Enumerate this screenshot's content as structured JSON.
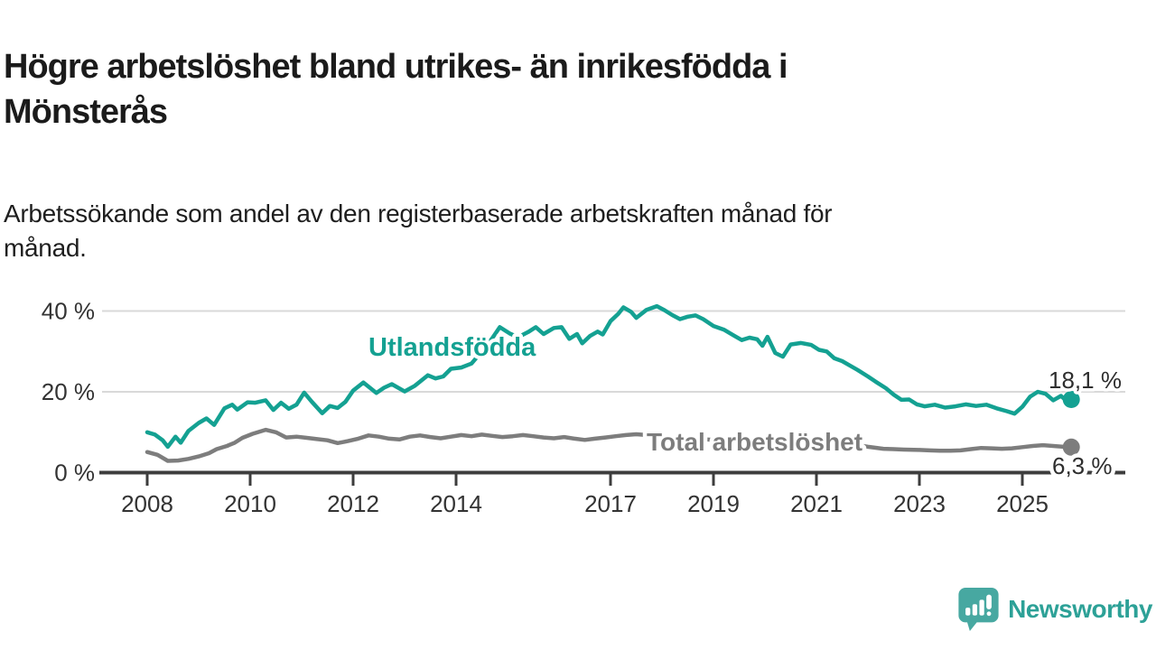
{
  "header": {
    "title_lines": [
      "Högre arbetslöshet bland utrikes- än inrikesfödda i",
      "Mönsterås"
    ],
    "subtitle_lines": [
      "Arbetssökande som andel av den registerbaserade arbetskraften månad för",
      "månad."
    ]
  },
  "chart_data": {
    "type": "line",
    "title": "Högre arbetslöshet bland utrikes- än inrikesfödda i Mönsterås",
    "subtitle": "Arbetssökande som andel av den registerbaserade arbetskraften månad för månad.",
    "unit": "%",
    "x_axis": {
      "label": "",
      "ticks": [
        2008,
        2010,
        2012,
        2014,
        2017,
        2019,
        2021,
        2023,
        2025
      ],
      "range": [
        2007.6,
        2027.0
      ]
    },
    "y_axis": {
      "label": "",
      "ticks": [
        0,
        20,
        40
      ],
      "tick_labels": [
        "0 %",
        "20 %",
        "40 %"
      ],
      "range": [
        0,
        45
      ],
      "gridlines": true
    },
    "legend_position": "inline-labels",
    "colors": {
      "utlandsfodda": "#14a192",
      "total": "#7d7d7d",
      "axis": "#3d3d3d",
      "gridline": "#d9d9d9",
      "value_label": "#2e2e2e"
    },
    "series": [
      {
        "name": "Utlandsfödda",
        "color": "#14a192",
        "end_label": "18,1 %",
        "end_value": 18.1,
        "points": [
          [
            2008.0,
            10.0
          ],
          [
            2008.15,
            9.4
          ],
          [
            2008.3,
            8.0
          ],
          [
            2008.4,
            6.4
          ],
          [
            2008.55,
            8.9
          ],
          [
            2008.65,
            7.4
          ],
          [
            2008.8,
            10.3
          ],
          [
            2009.0,
            12.3
          ],
          [
            2009.15,
            13.4
          ],
          [
            2009.3,
            11.8
          ],
          [
            2009.5,
            15.9
          ],
          [
            2009.65,
            16.8
          ],
          [
            2009.75,
            15.6
          ],
          [
            2009.95,
            17.4
          ],
          [
            2010.1,
            17.3
          ],
          [
            2010.3,
            17.9
          ],
          [
            2010.45,
            15.5
          ],
          [
            2010.6,
            17.3
          ],
          [
            2010.75,
            15.8
          ],
          [
            2010.9,
            16.8
          ],
          [
            2011.05,
            19.8
          ],
          [
            2011.2,
            17.5
          ],
          [
            2011.4,
            14.7
          ],
          [
            2011.55,
            16.5
          ],
          [
            2011.7,
            16.0
          ],
          [
            2011.85,
            17.5
          ],
          [
            2012.0,
            20.3
          ],
          [
            2012.2,
            22.3
          ],
          [
            2012.45,
            19.7
          ],
          [
            2012.6,
            21.0
          ],
          [
            2012.75,
            21.9
          ],
          [
            2013.0,
            20.1
          ],
          [
            2013.2,
            21.5
          ],
          [
            2013.45,
            24.1
          ],
          [
            2013.6,
            23.3
          ],
          [
            2013.75,
            23.8
          ],
          [
            2013.9,
            25.7
          ],
          [
            2014.1,
            26.0
          ],
          [
            2014.3,
            27.0
          ],
          [
            2014.5,
            30.0
          ],
          [
            2014.7,
            33.2
          ],
          [
            2014.85,
            36.0
          ],
          [
            2015.05,
            34.4
          ],
          [
            2015.2,
            33.5
          ],
          [
            2015.4,
            34.8
          ],
          [
            2015.55,
            36.0
          ],
          [
            2015.7,
            34.3
          ],
          [
            2015.9,
            35.8
          ],
          [
            2016.05,
            36.0
          ],
          [
            2016.2,
            33.1
          ],
          [
            2016.35,
            34.3
          ],
          [
            2016.45,
            32.0
          ],
          [
            2016.6,
            33.8
          ],
          [
            2016.75,
            34.9
          ],
          [
            2016.85,
            34.2
          ],
          [
            2017.0,
            37.5
          ],
          [
            2017.15,
            39.3
          ],
          [
            2017.25,
            40.9
          ],
          [
            2017.4,
            39.8
          ],
          [
            2017.5,
            38.3
          ],
          [
            2017.7,
            40.3
          ],
          [
            2017.9,
            41.2
          ],
          [
            2018.05,
            40.2
          ],
          [
            2018.2,
            39.0
          ],
          [
            2018.35,
            38.0
          ],
          [
            2018.5,
            38.6
          ],
          [
            2018.65,
            38.9
          ],
          [
            2018.8,
            38.0
          ],
          [
            2019.0,
            36.3
          ],
          [
            2019.2,
            35.4
          ],
          [
            2019.4,
            33.9
          ],
          [
            2019.55,
            32.8
          ],
          [
            2019.7,
            33.4
          ],
          [
            2019.85,
            33.0
          ],
          [
            2019.95,
            31.4
          ],
          [
            2020.05,
            33.6
          ],
          [
            2020.2,
            29.6
          ],
          [
            2020.35,
            28.7
          ],
          [
            2020.5,
            31.7
          ],
          [
            2020.7,
            32.1
          ],
          [
            2020.9,
            31.6
          ],
          [
            2021.05,
            30.4
          ],
          [
            2021.2,
            30.0
          ],
          [
            2021.35,
            28.3
          ],
          [
            2021.5,
            27.6
          ],
          [
            2021.65,
            26.5
          ],
          [
            2021.8,
            25.4
          ],
          [
            2022.0,
            23.8
          ],
          [
            2022.15,
            22.5
          ],
          [
            2022.35,
            20.9
          ],
          [
            2022.5,
            19.3
          ],
          [
            2022.65,
            18.0
          ],
          [
            2022.8,
            18.1
          ],
          [
            2022.95,
            16.9
          ],
          [
            2023.1,
            16.4
          ],
          [
            2023.3,
            16.8
          ],
          [
            2023.5,
            16.1
          ],
          [
            2023.7,
            16.4
          ],
          [
            2023.9,
            16.9
          ],
          [
            2024.1,
            16.5
          ],
          [
            2024.3,
            16.8
          ],
          [
            2024.5,
            15.9
          ],
          [
            2024.7,
            15.2
          ],
          [
            2024.85,
            14.6
          ],
          [
            2025.0,
            16.3
          ],
          [
            2025.15,
            18.8
          ],
          [
            2025.3,
            20.0
          ],
          [
            2025.45,
            19.5
          ],
          [
            2025.6,
            17.9
          ],
          [
            2025.75,
            19.0
          ],
          [
            2025.85,
            17.8
          ],
          [
            2025.95,
            18.1
          ]
        ]
      },
      {
        "name": "Total arbetslöshet",
        "color": "#7d7d7d",
        "end_label": "6,3 %",
        "end_value": 6.3,
        "points": [
          [
            2008.0,
            5.1
          ],
          [
            2008.2,
            4.4
          ],
          [
            2008.4,
            2.9
          ],
          [
            2008.6,
            3.0
          ],
          [
            2008.8,
            3.4
          ],
          [
            2009.0,
            4.0
          ],
          [
            2009.2,
            4.8
          ],
          [
            2009.35,
            5.8
          ],
          [
            2009.55,
            6.6
          ],
          [
            2009.7,
            7.4
          ],
          [
            2009.85,
            8.6
          ],
          [
            2010.05,
            9.6
          ],
          [
            2010.3,
            10.6
          ],
          [
            2010.5,
            10.0
          ],
          [
            2010.7,
            8.7
          ],
          [
            2010.9,
            8.9
          ],
          [
            2011.1,
            8.6
          ],
          [
            2011.3,
            8.3
          ],
          [
            2011.5,
            8.0
          ],
          [
            2011.7,
            7.3
          ],
          [
            2011.9,
            7.8
          ],
          [
            2012.1,
            8.4
          ],
          [
            2012.3,
            9.2
          ],
          [
            2012.5,
            8.9
          ],
          [
            2012.7,
            8.4
          ],
          [
            2012.9,
            8.2
          ],
          [
            2013.1,
            8.9
          ],
          [
            2013.3,
            9.2
          ],
          [
            2013.5,
            8.8
          ],
          [
            2013.7,
            8.5
          ],
          [
            2013.9,
            8.9
          ],
          [
            2014.1,
            9.3
          ],
          [
            2014.3,
            9.0
          ],
          [
            2014.5,
            9.4
          ],
          [
            2014.7,
            9.1
          ],
          [
            2014.9,
            8.8
          ],
          [
            2015.1,
            9.0
          ],
          [
            2015.3,
            9.3
          ],
          [
            2015.5,
            9.0
          ],
          [
            2015.7,
            8.7
          ],
          [
            2015.9,
            8.5
          ],
          [
            2016.1,
            8.8
          ],
          [
            2016.3,
            8.4
          ],
          [
            2016.5,
            8.1
          ],
          [
            2016.7,
            8.4
          ],
          [
            2016.9,
            8.7
          ],
          [
            2017.1,
            9.0
          ],
          [
            2017.3,
            9.3
          ],
          [
            2017.5,
            9.5
          ],
          [
            2017.7,
            9.3
          ],
          [
            2018.0,
            9.0
          ],
          [
            2018.3,
            8.7
          ],
          [
            2018.6,
            8.4
          ],
          [
            2019.0,
            8.1
          ],
          [
            2019.4,
            7.9
          ],
          [
            2019.8,
            8.0
          ],
          [
            2020.2,
            8.4
          ],
          [
            2020.5,
            8.7
          ],
          [
            2020.8,
            8.4
          ],
          [
            2021.1,
            8.1
          ],
          [
            2021.4,
            7.6
          ],
          [
            2021.7,
            7.0
          ],
          [
            2022.0,
            6.4
          ],
          [
            2022.3,
            5.9
          ],
          [
            2022.5,
            5.8
          ],
          [
            2022.7,
            5.7
          ],
          [
            2023.0,
            5.6
          ],
          [
            2023.2,
            5.5
          ],
          [
            2023.4,
            5.4
          ],
          [
            2023.6,
            5.4
          ],
          [
            2023.8,
            5.5
          ],
          [
            2024.0,
            5.8
          ],
          [
            2024.2,
            6.1
          ],
          [
            2024.4,
            6.0
          ],
          [
            2024.6,
            5.9
          ],
          [
            2024.8,
            6.0
          ],
          [
            2025.0,
            6.3
          ],
          [
            2025.2,
            6.6
          ],
          [
            2025.4,
            6.8
          ],
          [
            2025.6,
            6.6
          ],
          [
            2025.8,
            6.4
          ],
          [
            2025.95,
            6.3
          ]
        ]
      }
    ]
  },
  "footer": {
    "brand": "Newsworthy",
    "logo_icon": "newsworthy-speech-bubble-bar-chart-icon"
  }
}
